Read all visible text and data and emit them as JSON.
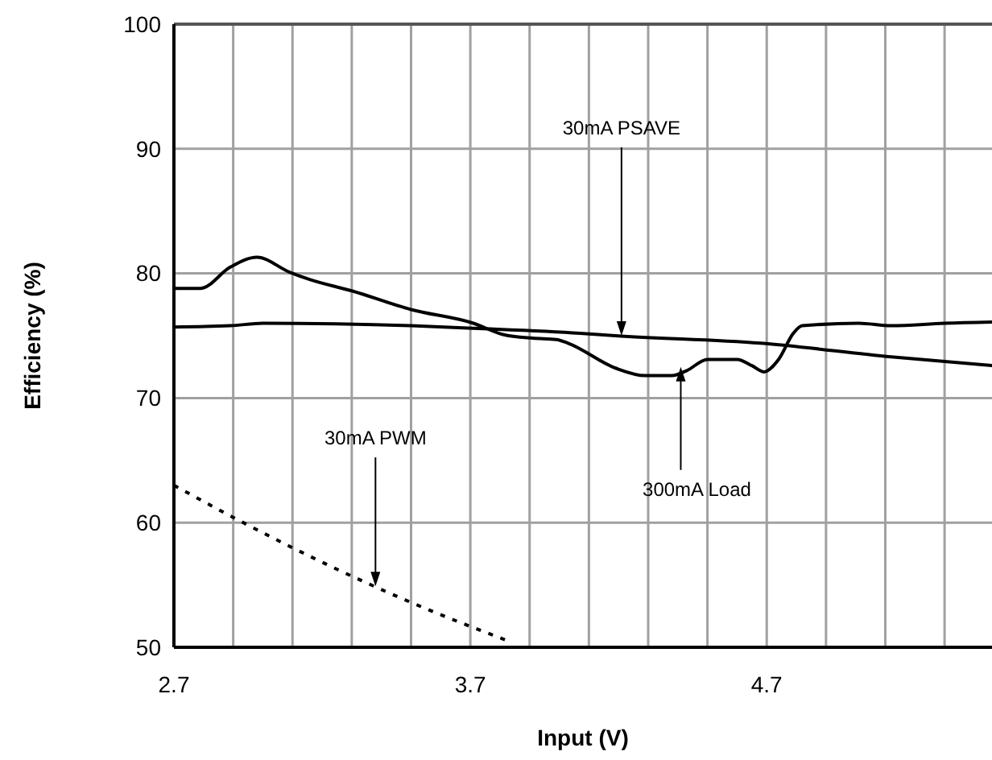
{
  "chart_data": {
    "type": "line",
    "xlabel": "Input (V)",
    "ylabel": "Efficiency (%)",
    "xlim": [
      2.7,
      5.46
    ],
    "ylim": [
      50,
      100
    ],
    "xticks": [
      2.7,
      {
        "value": 2.9,
        "label": null
      },
      {
        "value": 3.1,
        "label": null
      },
      {
        "value": 3.3,
        "label": null
      },
      {
        "value": 3.5,
        "label": null
      },
      3.7,
      {
        "value": 3.9,
        "label": null
      },
      {
        "value": 4.1,
        "label": null
      },
      {
        "value": 4.3,
        "label": null
      },
      {
        "value": 4.5,
        "label": null
      },
      4.7,
      {
        "value": 4.9,
        "label": null
      },
      {
        "value": 5.1,
        "label": null
      },
      {
        "value": 5.3,
        "label": null
      }
    ],
    "yticks": [
      50,
      60,
      70,
      80,
      90,
      100
    ],
    "grid": true,
    "marker": "none",
    "series": [
      {
        "color": "#000000",
        "line_style": "solid",
        "x": [
          2.7,
          2.79,
          2.89,
          2.98,
          3.09,
          3.16,
          3.3,
          3.5,
          3.71,
          3.81,
          3.91,
          3.99,
          4.03,
          4.19,
          4.29,
          4.38,
          4.43,
          4.5,
          4.6,
          4.65,
          4.69,
          4.74,
          4.79,
          4.82,
          5.01,
          5.12,
          5.3,
          5.46
        ],
        "values": [
          78.8,
          78.8,
          80.5,
          81.3,
          80.1,
          79.5,
          78.6,
          77.1,
          76.0,
          75.1,
          74.8,
          74.7,
          74.4,
          72.4,
          71.8,
          71.8,
          72.2,
          73.1,
          73.1,
          72.6,
          72.1,
          73.1,
          75.2,
          75.8,
          76.0,
          75.8,
          76.0,
          76.1
        ]
      },
      {
        "color": "#000000",
        "line_style": "solid",
        "x": [
          2.7,
          2.89,
          3.0,
          3.5,
          3.71,
          4.07,
          4.19,
          4.68,
          5.12,
          5.46
        ],
        "values": [
          75.7,
          75.8,
          76.0,
          75.8,
          75.6,
          75.2,
          75.0,
          74.4,
          73.3,
          72.6
        ]
      },
      {
        "color": "#000000",
        "line_style": "dotted",
        "x": [
          2.7,
          2.91,
          3.22,
          3.5,
          3.84
        ],
        "values": [
          63.0,
          60.3,
          56.6,
          53.6,
          50.4
        ]
      }
    ],
    "annotations": [
      {
        "text": "30mA PSAVE",
        "x": 4.21,
        "y": 75.0
      },
      {
        "text": "30mA PWM",
        "x": 3.38,
        "y": 54.9
      },
      {
        "text": "300mA Load",
        "x": 4.41,
        "y": 72.5
      }
    ]
  }
}
